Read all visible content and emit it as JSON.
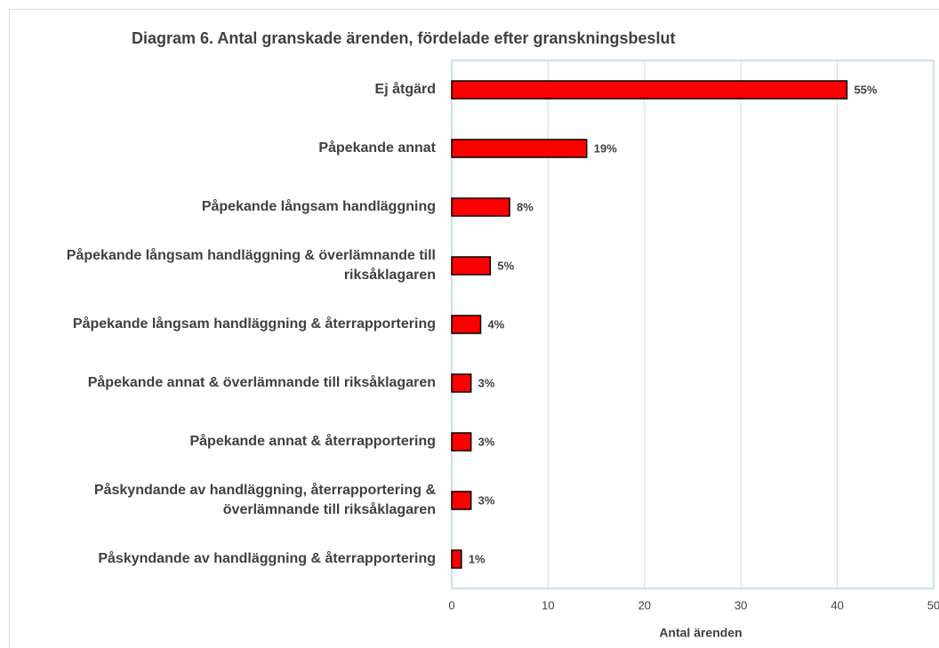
{
  "chart_data": {
    "type": "bar",
    "orientation": "horizontal",
    "title": "Diagram 6. Antal granskade ärenden, fördelade efter granskningsbeslut",
    "categories": [
      "Ej åtgärd",
      "Påpekande annat",
      "Påpekande långsam handläggning",
      "Påpekande långsam handläggning & överlämnande till riksåklagaren",
      "Påpekande långsam handläggning & återrapportering",
      "Påpekande annat & överlämnande till riksåklagaren",
      "Påpekande annat & återrapportering",
      "Påskyndande av handläggning, återrapportering & överlämnande till riksåklagaren",
      "Påskyndande av handläggning & återrapportering"
    ],
    "values": [
      41,
      14,
      6,
      4,
      3,
      2,
      2,
      2,
      1
    ],
    "value_labels": [
      "55%",
      "19%",
      "8%",
      "5%",
      "4%",
      "3%",
      "3%",
      "3%",
      "1%"
    ],
    "color": "#ff0000",
    "xlabel": "Antal ärenden",
    "xlim": [
      0,
      50
    ],
    "xticks": [
      0,
      10,
      20,
      30,
      40,
      50
    ],
    "grid": true
  }
}
